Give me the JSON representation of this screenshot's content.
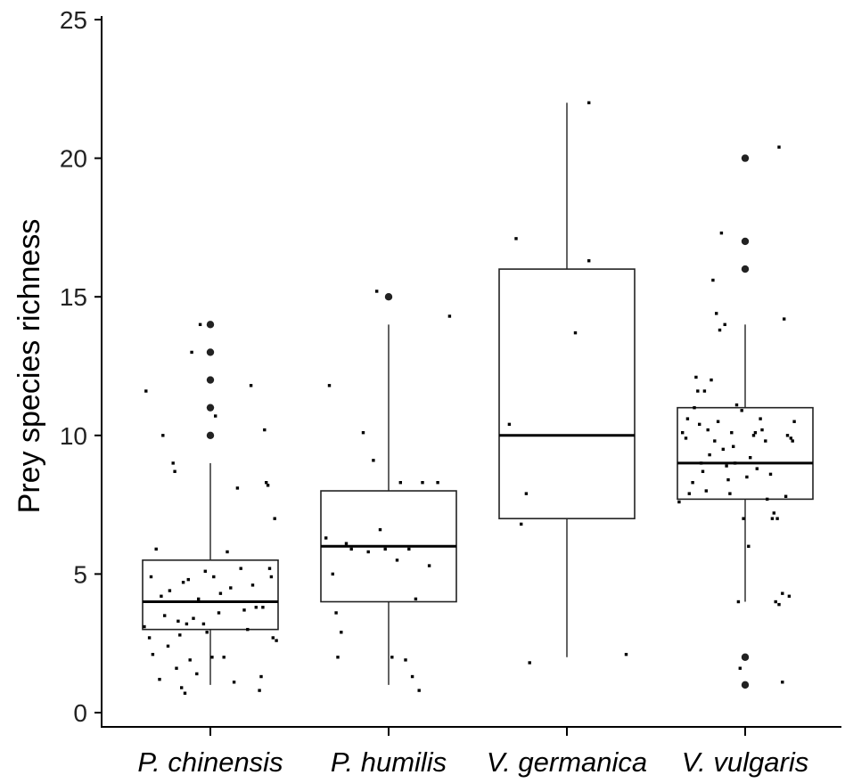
{
  "chart_data": {
    "type": "box",
    "ylabel": "Prey species richness",
    "ylim": [
      0,
      25
    ],
    "yticks": [
      0,
      5,
      10,
      15,
      20,
      25
    ],
    "categories": [
      "P. chinensis",
      "P. humilis",
      "V. germanica",
      "V. vulgaris"
    ],
    "boxes": [
      {
        "category": "P. chinensis",
        "whisker_low": 1,
        "q1": 3,
        "median": 4,
        "q3": 5.5,
        "whisker_high": 9,
        "outliers": [
          10,
          11,
          12,
          13,
          14
        ],
        "points": [
          [
            -0.39,
            3.1
          ],
          [
            -0.38,
            11.6
          ],
          [
            -0.36,
            2.7
          ],
          [
            -0.35,
            4.9
          ],
          [
            -0.34,
            2.1
          ],
          [
            -0.32,
            5.9
          ],
          [
            -0.3,
            1.2
          ],
          [
            -0.29,
            4.2
          ],
          [
            -0.28,
            10.0
          ],
          [
            -0.27,
            3.5
          ],
          [
            -0.25,
            2.4
          ],
          [
            -0.24,
            4.4
          ],
          [
            -0.22,
            9.0
          ],
          [
            -0.21,
            8.7
          ],
          [
            -0.2,
            1.6
          ],
          [
            -0.19,
            3.3
          ],
          [
            -0.18,
            2.8
          ],
          [
            -0.17,
            0.9
          ],
          [
            -0.16,
            4.7
          ],
          [
            -0.15,
            0.7
          ],
          [
            -0.14,
            3.2
          ],
          [
            -0.13,
            4.8
          ],
          [
            -0.12,
            1.9
          ],
          [
            -0.11,
            13.0
          ],
          [
            -0.1,
            3.4
          ],
          [
            -0.08,
            1.4
          ],
          [
            -0.07,
            4.1
          ],
          [
            -0.06,
            14.0
          ],
          [
            -0.04,
            3.2
          ],
          [
            -0.03,
            5.1
          ],
          [
            -0.02,
            2.9
          ],
          [
            0.01,
            2.0
          ],
          [
            0.02,
            4.9
          ],
          [
            0.03,
            10.7
          ],
          [
            0.05,
            3.6
          ],
          [
            0.06,
            4.3
          ],
          [
            0.08,
            2.0
          ],
          [
            0.1,
            5.8
          ],
          [
            0.12,
            4.5
          ],
          [
            0.14,
            1.1
          ],
          [
            0.16,
            8.1
          ],
          [
            0.18,
            5.2
          ],
          [
            0.2,
            3.7
          ],
          [
            0.22,
            3.0
          ],
          [
            0.24,
            11.8
          ],
          [
            0.25,
            4.6
          ],
          [
            0.27,
            3.8
          ],
          [
            0.29,
            0.8
          ],
          [
            0.3,
            1.3
          ],
          [
            0.31,
            3.8
          ],
          [
            0.32,
            10.2
          ],
          [
            0.33,
            8.3
          ],
          [
            0.34,
            8.2
          ],
          [
            0.35,
            5.2
          ],
          [
            0.36,
            4.9
          ],
          [
            0.37,
            2.7
          ],
          [
            0.38,
            7.0
          ],
          [
            0.39,
            2.6
          ]
        ]
      },
      {
        "category": "P. humilis",
        "whisker_low": 1,
        "q1": 4,
        "median": 6,
        "q3": 8,
        "whisker_high": 14,
        "outliers": [
          15
        ],
        "points": [
          [
            -0.37,
            6.3
          ],
          [
            -0.35,
            11.8
          ],
          [
            -0.33,
            5.0
          ],
          [
            -0.31,
            3.6
          ],
          [
            -0.3,
            2.0
          ],
          [
            -0.28,
            2.9
          ],
          [
            -0.25,
            6.1
          ],
          [
            -0.22,
            5.9
          ],
          [
            -0.15,
            10.1
          ],
          [
            -0.12,
            5.8
          ],
          [
            -0.09,
            9.1
          ],
          [
            -0.07,
            15.2
          ],
          [
            -0.05,
            6.6
          ],
          [
            -0.02,
            5.9
          ],
          [
            0.02,
            2.0
          ],
          [
            0.05,
            5.5
          ],
          [
            0.07,
            8.3
          ],
          [
            0.1,
            1.9
          ],
          [
            0.12,
            5.9
          ],
          [
            0.14,
            1.3
          ],
          [
            0.16,
            4.1
          ],
          [
            0.18,
            0.8
          ],
          [
            0.2,
            8.3
          ],
          [
            0.24,
            5.3
          ],
          [
            0.29,
            8.3
          ],
          [
            0.36,
            14.3
          ]
        ]
      },
      {
        "category": "V. germanica",
        "whisker_low": 2,
        "q1": 7,
        "median": 10,
        "q3": 16,
        "whisker_high": 22,
        "outliers": [],
        "points": [
          [
            -0.34,
            10.4
          ],
          [
            -0.3,
            17.1
          ],
          [
            -0.27,
            6.8
          ],
          [
            -0.24,
            7.9
          ],
          [
            -0.22,
            1.8
          ],
          [
            0.05,
            13.7
          ],
          [
            0.13,
            16.3
          ],
          [
            0.13,
            22.0
          ],
          [
            0.35,
            2.1
          ]
        ]
      },
      {
        "category": "V. vulgaris",
        "whisker_low": 4,
        "q1": 7.7,
        "median": 9,
        "q3": 11,
        "whisker_high": 14,
        "outliers": [
          1,
          2,
          16,
          17,
          20
        ],
        "points": [
          [
            -0.39,
            7.6
          ],
          [
            -0.37,
            10.1
          ],
          [
            -0.35,
            9.9
          ],
          [
            -0.34,
            10.6
          ],
          [
            -0.33,
            7.9
          ],
          [
            -0.31,
            8.3
          ],
          [
            -0.3,
            11.0
          ],
          [
            -0.29,
            12.1
          ],
          [
            -0.28,
            11.6
          ],
          [
            -0.27,
            10.4
          ],
          [
            -0.26,
            9.0
          ],
          [
            -0.25,
            8.7
          ],
          [
            -0.24,
            11.6
          ],
          [
            -0.23,
            8.0
          ],
          [
            -0.22,
            10.2
          ],
          [
            -0.21,
            9.3
          ],
          [
            -0.2,
            12.0
          ],
          [
            -0.19,
            15.6
          ],
          [
            -0.18,
            9.8
          ],
          [
            -0.17,
            14.4
          ],
          [
            -0.16,
            10.5
          ],
          [
            -0.15,
            13.8
          ],
          [
            -0.14,
            17.3
          ],
          [
            -0.13,
            9.5
          ],
          [
            -0.12,
            14.0
          ],
          [
            -0.11,
            8.9
          ],
          [
            -0.1,
            8.4
          ],
          [
            -0.09,
            7.9
          ],
          [
            -0.08,
            10.1
          ],
          [
            -0.07,
            9.6
          ],
          [
            -0.06,
            9.0
          ],
          [
            -0.05,
            11.1
          ],
          [
            -0.04,
            4.0
          ],
          [
            -0.03,
            1.6
          ],
          [
            -0.02,
            10.9
          ],
          [
            -0.01,
            7.0
          ],
          [
            0.01,
            8.5
          ],
          [
            0.02,
            6.0
          ],
          [
            0.03,
            9.2
          ],
          [
            0.05,
            10.0
          ],
          [
            0.06,
            10.1
          ],
          [
            0.07,
            8.8
          ],
          [
            0.09,
            10.6
          ],
          [
            0.1,
            10.2
          ],
          [
            0.12,
            9.8
          ],
          [
            0.13,
            7.7
          ],
          [
            0.15,
            8.6
          ],
          [
            0.16,
            7.0
          ],
          [
            0.17,
            7.2
          ],
          [
            0.18,
            4.0
          ],
          [
            0.19,
            7.0
          ],
          [
            0.2,
            3.9
          ],
          [
            0.22,
            4.3
          ],
          [
            0.23,
            14.2
          ],
          [
            0.24,
            7.8
          ],
          [
            0.25,
            10.0
          ],
          [
            0.26,
            4.2
          ],
          [
            0.27,
            9.9
          ],
          [
            0.28,
            9.8
          ],
          [
            0.29,
            10.5
          ],
          [
            0.2,
            20.4
          ],
          [
            0.22,
            1.1
          ]
        ]
      }
    ]
  }
}
